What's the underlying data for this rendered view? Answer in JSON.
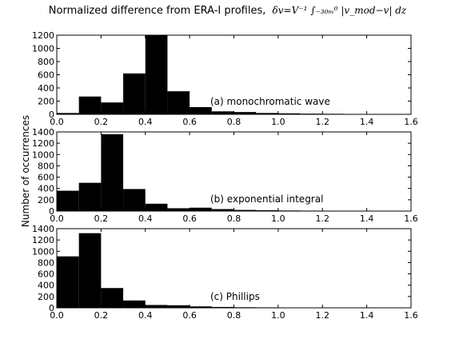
{
  "figure": {
    "title_text": "Normalized difference from ERA-I profiles,",
    "title_formula": "δv=V⁻¹ ∫₋₃₀ₘ⁰ |v_mod−v| dz",
    "ylabel": "Number of occurrences"
  },
  "colors": {
    "bar": "#000000",
    "axis": "#000000",
    "background": "#ffffff"
  },
  "chart_data": [
    {
      "type": "bar",
      "label": "(a) monochromatic wave",
      "xlim": [
        0.0,
        1.6
      ],
      "ylim": [
        0,
        1200
      ],
      "xticks": [
        "0.0",
        "0.2",
        "0.4",
        "0.6",
        "0.8",
        "1.0",
        "1.2",
        "1.4",
        "1.6"
      ],
      "yticks": [
        "0",
        "200",
        "400",
        "600",
        "800",
        "1000",
        "1200"
      ],
      "bin_edges": [
        0.0,
        0.1,
        0.2,
        0.3,
        0.4,
        0.5,
        0.6,
        0.7,
        0.8,
        0.9,
        1.0,
        1.1,
        1.2,
        1.3,
        1.4,
        1.5
      ],
      "values": [
        20,
        270,
        180,
        620,
        1200,
        350,
        110,
        45,
        35,
        20,
        15,
        10,
        8,
        5,
        4
      ]
    },
    {
      "type": "bar",
      "label": "(b) exponential integral",
      "xlim": [
        0.0,
        1.6
      ],
      "ylim": [
        0,
        1400
      ],
      "xticks": [
        "0.0",
        "0.2",
        "0.4",
        "0.6",
        "0.8",
        "1.0",
        "1.2",
        "1.4",
        "1.6"
      ],
      "yticks": [
        "0",
        "200",
        "400",
        "600",
        "800",
        "1000",
        "1200",
        "1400"
      ],
      "bin_edges": [
        0.0,
        0.1,
        0.2,
        0.3,
        0.4,
        0.5,
        0.6,
        0.7,
        0.8,
        0.9,
        1.0,
        1.1,
        1.2,
        1.3,
        1.4,
        1.5
      ],
      "values": [
        360,
        500,
        1360,
        390,
        130,
        50,
        60,
        35,
        20,
        15,
        10,
        8,
        5,
        4,
        3
      ]
    },
    {
      "type": "bar",
      "label": "(c) Phillips",
      "xlim": [
        0.0,
        1.6
      ],
      "ylim": [
        0,
        1400
      ],
      "xticks": [
        "0.0",
        "0.2",
        "0.4",
        "0.6",
        "0.8",
        "1.0",
        "1.2",
        "1.4",
        "1.6"
      ],
      "yticks": [
        "0",
        "200",
        "400",
        "600",
        "800",
        "1000",
        "1200",
        "1400"
      ],
      "bin_edges": [
        0.0,
        0.1,
        0.2,
        0.3,
        0.4,
        0.5,
        0.6,
        0.7,
        0.8,
        0.9,
        1.0,
        1.1,
        1.2,
        1.3,
        1.4,
        1.5
      ],
      "values": [
        910,
        1320,
        350,
        130,
        50,
        45,
        25,
        15,
        10,
        8,
        6,
        5,
        4,
        3,
        2
      ]
    }
  ]
}
